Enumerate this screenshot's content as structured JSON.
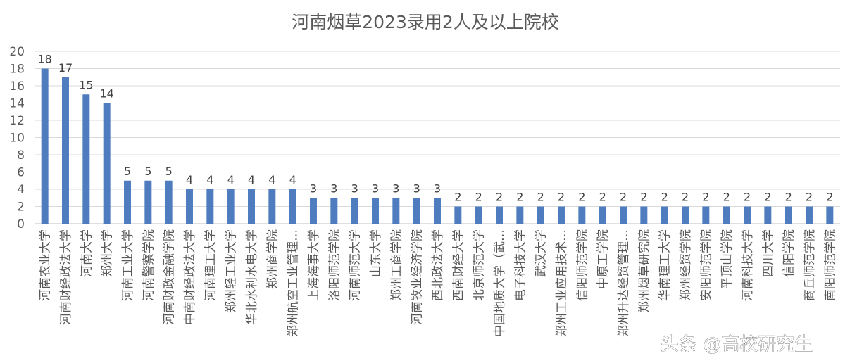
{
  "chart_data": {
    "type": "bar",
    "title": "河南烟草2023录用2人及以上院校",
    "xlabel": "",
    "ylabel": "",
    "ylim": [
      0,
      20
    ],
    "yticks": [
      0,
      2,
      4,
      6,
      8,
      10,
      12,
      14,
      16,
      18,
      20
    ],
    "grid": true,
    "legend": "none",
    "bar_color": "#4E7CBF",
    "categories": [
      "河南农业大学",
      "河南财经政法大学",
      "河南大学",
      "郑州大学",
      "河南工业大学",
      "河南警察学院",
      "河南财政金融学院",
      "中南财经政法大学",
      "河南理工大学",
      "郑州轻工业大学",
      "华北水利水电大学",
      "郑州商学院",
      "郑州航空工业管理…",
      "上海海事大学",
      "洛阳师范学院",
      "河南师范大学",
      "山东大学",
      "郑州工商学院",
      "河南牧业经济学院",
      "西北政法大学",
      "西南财经大学",
      "北京师范大学",
      "中国地质大学（武…",
      "电子科技大学",
      "武汉大学",
      "郑州工业应用技术…",
      "信阳师范学院",
      "中原工学院",
      "郑州升达经贸管理…",
      "郑州烟草研究院",
      "华南理工大学",
      "郑州经贸学院",
      "安阳师范学院",
      "平顶山学院",
      "河南科技大学",
      "四川大学",
      "信阳学院",
      "商丘师范学院",
      "南阳师范学院"
    ],
    "values": [
      18,
      17,
      15,
      14,
      5,
      5,
      5,
      4,
      4,
      4,
      4,
      4,
      4,
      3,
      3,
      3,
      3,
      3,
      3,
      3,
      2,
      2,
      2,
      2,
      2,
      2,
      2,
      2,
      2,
      2,
      2,
      2,
      2,
      2,
      2,
      2,
      2,
      2,
      2
    ]
  },
  "watermark": "头条 @高校研究生"
}
